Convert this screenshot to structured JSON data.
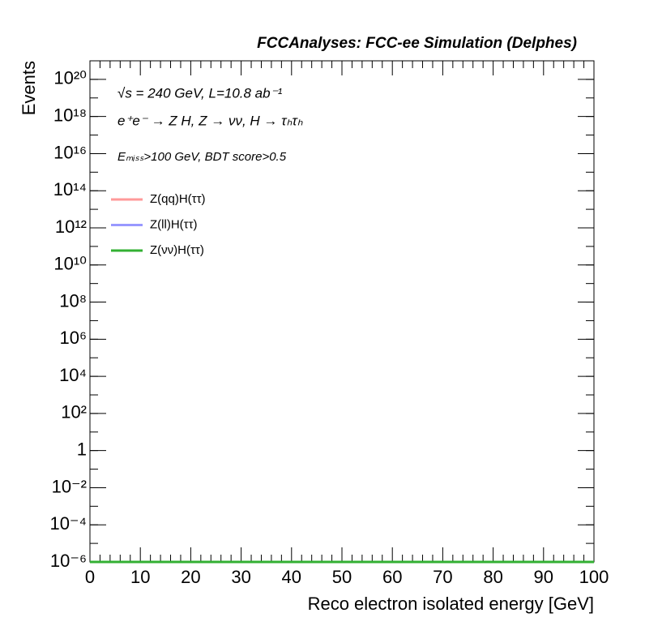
{
  "chart_data": {
    "type": "line",
    "title": "FCCAnalyses: FCC-ee Simulation (Delphes)",
    "annotations": [
      "√s = 240 GeV, L=10.8 ab⁻¹",
      "e⁺e⁻ → Z H, Z → νν, H → τₕτₕ",
      "Eₘᵢₛₛ>100 GeV, BDT score>0.5"
    ],
    "x_label": "Reco electron isolated energy [GeV]",
    "y_label": "Events",
    "x": [
      0,
      100
    ],
    "series": [
      {
        "name": "Z(qq)H(ττ)",
        "color": "#ff9999",
        "values": [
          1e-06,
          1e-06
        ]
      },
      {
        "name": "Z(ll)H(ττ)",
        "color": "#9999ff",
        "values": [
          1e-06,
          1e-06
        ]
      },
      {
        "name": "Z(νν)H(ττ)",
        "color": "#33b033",
        "values": [
          1e-06,
          1e-06
        ]
      }
    ],
    "xlim": [
      0,
      100
    ],
    "xticks": [
      0,
      10,
      20,
      30,
      40,
      50,
      60,
      70,
      80,
      90,
      100
    ],
    "ylim": [
      1e-06,
      1e+21
    ],
    "log_y": true,
    "yticks": [
      {
        "value": 1e-06,
        "label": "10⁻⁶"
      },
      {
        "value": 0.0001,
        "label": "10⁻⁴"
      },
      {
        "value": 0.01,
        "label": "10⁻²"
      },
      1,
      {
        "value": 100,
        "label": "10²"
      },
      {
        "value": 10000.0,
        "label": "10⁴"
      },
      {
        "value": 1000000.0,
        "label": "10⁶"
      },
      {
        "value": 100000000.0,
        "label": "10⁸"
      },
      {
        "value": 10000000000.0,
        "label": "10¹⁰"
      },
      {
        "value": 1000000000000.0,
        "label": "10¹²"
      },
      {
        "value": 100000000000000.0,
        "label": "10¹⁴"
      },
      {
        "value": 1e+16,
        "label": "10¹⁶"
      },
      {
        "value": 1e+18,
        "label": "10¹⁸"
      },
      {
        "value": 1e+20,
        "label": "10²⁰"
      }
    ],
    "grid": false,
    "legend": "top-left"
  }
}
